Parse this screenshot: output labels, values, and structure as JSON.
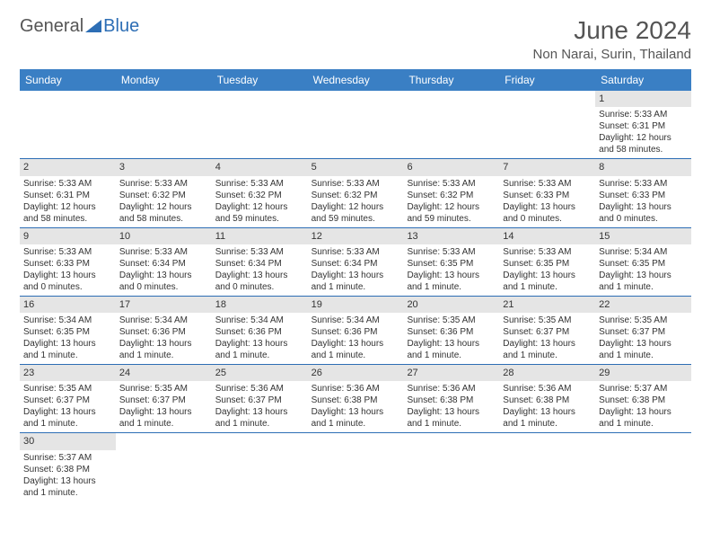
{
  "logo": {
    "general": "General",
    "blue": "Blue"
  },
  "title": "June 2024",
  "location": "Non Narai, Surin, Thailand",
  "dayHeaders": [
    "Sunday",
    "Monday",
    "Tuesday",
    "Wednesday",
    "Thursday",
    "Friday",
    "Saturday"
  ],
  "header_bg": "#3a7fc4",
  "weeks": [
    [
      null,
      null,
      null,
      null,
      null,
      null,
      {
        "n": "1",
        "sr": "Sunrise: 5:33 AM",
        "ss": "Sunset: 6:31 PM",
        "d1": "Daylight: 12 hours",
        "d2": "and 58 minutes."
      }
    ],
    [
      {
        "n": "2",
        "sr": "Sunrise: 5:33 AM",
        "ss": "Sunset: 6:31 PM",
        "d1": "Daylight: 12 hours",
        "d2": "and 58 minutes."
      },
      {
        "n": "3",
        "sr": "Sunrise: 5:33 AM",
        "ss": "Sunset: 6:32 PM",
        "d1": "Daylight: 12 hours",
        "d2": "and 58 minutes."
      },
      {
        "n": "4",
        "sr": "Sunrise: 5:33 AM",
        "ss": "Sunset: 6:32 PM",
        "d1": "Daylight: 12 hours",
        "d2": "and 59 minutes."
      },
      {
        "n": "5",
        "sr": "Sunrise: 5:33 AM",
        "ss": "Sunset: 6:32 PM",
        "d1": "Daylight: 12 hours",
        "d2": "and 59 minutes."
      },
      {
        "n": "6",
        "sr": "Sunrise: 5:33 AM",
        "ss": "Sunset: 6:32 PM",
        "d1": "Daylight: 12 hours",
        "d2": "and 59 minutes."
      },
      {
        "n": "7",
        "sr": "Sunrise: 5:33 AM",
        "ss": "Sunset: 6:33 PM",
        "d1": "Daylight: 13 hours",
        "d2": "and 0 minutes."
      },
      {
        "n": "8",
        "sr": "Sunrise: 5:33 AM",
        "ss": "Sunset: 6:33 PM",
        "d1": "Daylight: 13 hours",
        "d2": "and 0 minutes."
      }
    ],
    [
      {
        "n": "9",
        "sr": "Sunrise: 5:33 AM",
        "ss": "Sunset: 6:33 PM",
        "d1": "Daylight: 13 hours",
        "d2": "and 0 minutes."
      },
      {
        "n": "10",
        "sr": "Sunrise: 5:33 AM",
        "ss": "Sunset: 6:34 PM",
        "d1": "Daylight: 13 hours",
        "d2": "and 0 minutes."
      },
      {
        "n": "11",
        "sr": "Sunrise: 5:33 AM",
        "ss": "Sunset: 6:34 PM",
        "d1": "Daylight: 13 hours",
        "d2": "and 0 minutes."
      },
      {
        "n": "12",
        "sr": "Sunrise: 5:33 AM",
        "ss": "Sunset: 6:34 PM",
        "d1": "Daylight: 13 hours",
        "d2": "and 1 minute."
      },
      {
        "n": "13",
        "sr": "Sunrise: 5:33 AM",
        "ss": "Sunset: 6:35 PM",
        "d1": "Daylight: 13 hours",
        "d2": "and 1 minute."
      },
      {
        "n": "14",
        "sr": "Sunrise: 5:33 AM",
        "ss": "Sunset: 6:35 PM",
        "d1": "Daylight: 13 hours",
        "d2": "and 1 minute."
      },
      {
        "n": "15",
        "sr": "Sunrise: 5:34 AM",
        "ss": "Sunset: 6:35 PM",
        "d1": "Daylight: 13 hours",
        "d2": "and 1 minute."
      }
    ],
    [
      {
        "n": "16",
        "sr": "Sunrise: 5:34 AM",
        "ss": "Sunset: 6:35 PM",
        "d1": "Daylight: 13 hours",
        "d2": "and 1 minute."
      },
      {
        "n": "17",
        "sr": "Sunrise: 5:34 AM",
        "ss": "Sunset: 6:36 PM",
        "d1": "Daylight: 13 hours",
        "d2": "and 1 minute."
      },
      {
        "n": "18",
        "sr": "Sunrise: 5:34 AM",
        "ss": "Sunset: 6:36 PM",
        "d1": "Daylight: 13 hours",
        "d2": "and 1 minute."
      },
      {
        "n": "19",
        "sr": "Sunrise: 5:34 AM",
        "ss": "Sunset: 6:36 PM",
        "d1": "Daylight: 13 hours",
        "d2": "and 1 minute."
      },
      {
        "n": "20",
        "sr": "Sunrise: 5:35 AM",
        "ss": "Sunset: 6:36 PM",
        "d1": "Daylight: 13 hours",
        "d2": "and 1 minute."
      },
      {
        "n": "21",
        "sr": "Sunrise: 5:35 AM",
        "ss": "Sunset: 6:37 PM",
        "d1": "Daylight: 13 hours",
        "d2": "and 1 minute."
      },
      {
        "n": "22",
        "sr": "Sunrise: 5:35 AM",
        "ss": "Sunset: 6:37 PM",
        "d1": "Daylight: 13 hours",
        "d2": "and 1 minute."
      }
    ],
    [
      {
        "n": "23",
        "sr": "Sunrise: 5:35 AM",
        "ss": "Sunset: 6:37 PM",
        "d1": "Daylight: 13 hours",
        "d2": "and 1 minute."
      },
      {
        "n": "24",
        "sr": "Sunrise: 5:35 AM",
        "ss": "Sunset: 6:37 PM",
        "d1": "Daylight: 13 hours",
        "d2": "and 1 minute."
      },
      {
        "n": "25",
        "sr": "Sunrise: 5:36 AM",
        "ss": "Sunset: 6:37 PM",
        "d1": "Daylight: 13 hours",
        "d2": "and 1 minute."
      },
      {
        "n": "26",
        "sr": "Sunrise: 5:36 AM",
        "ss": "Sunset: 6:38 PM",
        "d1": "Daylight: 13 hours",
        "d2": "and 1 minute."
      },
      {
        "n": "27",
        "sr": "Sunrise: 5:36 AM",
        "ss": "Sunset: 6:38 PM",
        "d1": "Daylight: 13 hours",
        "d2": "and 1 minute."
      },
      {
        "n": "28",
        "sr": "Sunrise: 5:36 AM",
        "ss": "Sunset: 6:38 PM",
        "d1": "Daylight: 13 hours",
        "d2": "and 1 minute."
      },
      {
        "n": "29",
        "sr": "Sunrise: 5:37 AM",
        "ss": "Sunset: 6:38 PM",
        "d1": "Daylight: 13 hours",
        "d2": "and 1 minute."
      }
    ],
    [
      {
        "n": "30",
        "sr": "Sunrise: 5:37 AM",
        "ss": "Sunset: 6:38 PM",
        "d1": "Daylight: 13 hours",
        "d2": "and 1 minute."
      },
      null,
      null,
      null,
      null,
      null,
      null
    ]
  ]
}
